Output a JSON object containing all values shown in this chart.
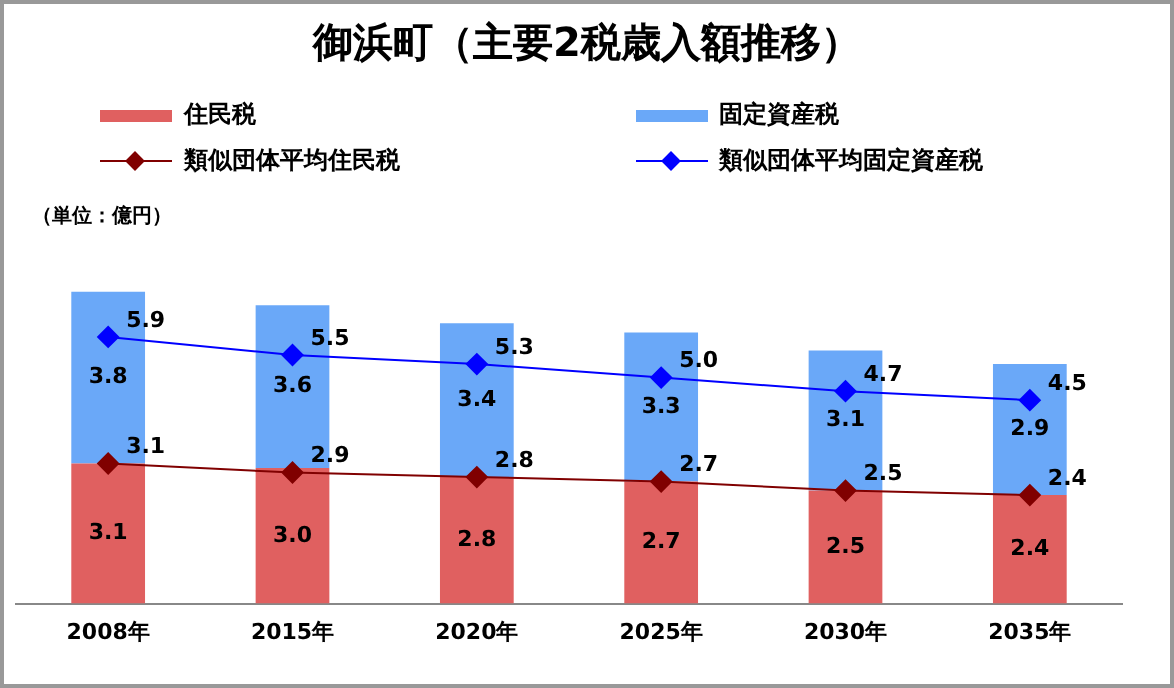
{
  "chart_data": {
    "type": "bar",
    "title": "御浜町（主要2税歳入額推移）",
    "categories": [
      "2008年",
      "2015年",
      "2020年",
      "2025年",
      "2030年",
      "2035年"
    ],
    "stacked": true,
    "legend": "top",
    "marker": "diamond",
    "grid": false,
    "tick_labels": "x",
    "annotations": [
      "（単位：億円）"
    ],
    "series": [
      {
        "name": "住民税",
        "color": "#e06060",
        "values": [
          3.1,
          3.0,
          2.8,
          2.7,
          2.5,
          2.4
        ],
        "value_labels": [
          "3.1",
          "3.0",
          "2.8",
          "2.7",
          "2.5",
          "2.4"
        ]
      },
      {
        "name": "固定資産税",
        "color": "#6aa8f8",
        "values": [
          3.8,
          3.6,
          3.4,
          3.3,
          3.1,
          2.9
        ],
        "value_labels": [
          "3.8",
          "3.6",
          "3.4",
          "3.3",
          "3.1",
          "2.9"
        ]
      },
      {
        "name": "類似団体平均住民税",
        "type": "line",
        "color": "#800000",
        "values": [
          3.1,
          2.9,
          2.8,
          2.7,
          2.5,
          2.4
        ],
        "value_labels": [
          "3.1",
          "2.9",
          "2.8",
          "2.7",
          "2.5",
          "2.4"
        ]
      },
      {
        "name": "類似団体平均固定資産税",
        "type": "line",
        "color": "#0000ff",
        "values": [
          5.9,
          5.5,
          5.3,
          5.0,
          4.7,
          4.5
        ],
        "value_labels": [
          "5.9",
          "5.5",
          "5.3",
          "5.0",
          "4.7",
          "4.5"
        ]
      }
    ]
  }
}
